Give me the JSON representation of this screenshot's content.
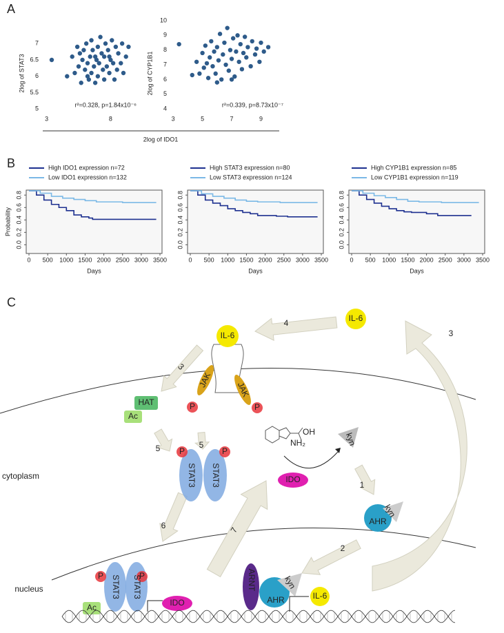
{
  "panel_labels": [
    "A",
    "B",
    "C"
  ],
  "panel_a_x_label": "2log of IDO1",
  "chart_data": [
    {
      "type": "scatter",
      "y_label": "2log of STAT3",
      "annotation": "r²=0.328, p=1.84x10⁻⁶",
      "color": "#2e5b8a",
      "xlim": [
        2.7,
        9.7
      ],
      "xticks": [
        3,
        8
      ],
      "ylim": [
        4.9,
        7.7
      ],
      "yticks": [
        5,
        5.5,
        6,
        6.5,
        7
      ],
      "x": [
        3.4,
        4.6,
        5.0,
        5.2,
        5.4,
        5.5,
        5.7,
        5.8,
        5.9,
        6.0,
        6.1,
        6.2,
        6.3,
        6.4,
        6.5,
        6.5,
        6.6,
        6.7,
        6.8,
        6.9,
        7.0,
        7.0,
        7.1,
        7.2,
        7.3,
        7.4,
        7.5,
        7.5,
        7.6,
        7.7,
        7.8,
        7.9,
        8.0,
        8.1,
        8.2,
        8.3,
        8.4,
        8.5,
        8.6,
        8.8,
        8.9,
        9.0,
        9.2,
        9.4,
        5.6,
        6.2,
        7.9,
        6.8
      ],
      "values": [
        6.5,
        6.0,
        6.6,
        6.1,
        6.9,
        6.3,
        5.8,
        6.5,
        6.8,
        6.2,
        7.0,
        6.4,
        5.9,
        6.6,
        6.1,
        7.1,
        6.8,
        6.3,
        5.8,
        6.5,
        6.0,
        6.9,
        6.4,
        7.2,
        6.7,
        6.2,
        5.9,
        6.6,
        7.0,
        6.3,
        6.8,
        6.1,
        6.5,
        7.1,
        6.4,
        5.9,
        6.9,
        6.2,
        6.7,
        6.4,
        7.0,
        6.1,
        6.6,
        6.9,
        6.7,
        6.0,
        6.6,
        6.6
      ]
    },
    {
      "type": "scatter",
      "y_label": "2log of CYP1B1",
      "annotation": "r²=0.339, p=8.73x10⁻⁷",
      "color": "#2e5b8a",
      "xlim": [
        2.85,
        10.25
      ],
      "xticks": [
        3,
        5,
        7,
        9
      ],
      "ylim": [
        3.77,
        10
      ],
      "yticks": [
        4,
        5,
        6,
        7,
        8,
        9,
        10
      ],
      "x": [
        3.4,
        4.3,
        4.6,
        4.8,
        5.0,
        5.1,
        5.2,
        5.3,
        5.4,
        5.5,
        5.6,
        5.7,
        5.8,
        5.9,
        6.0,
        6.1,
        6.2,
        6.3,
        6.4,
        6.5,
        6.6,
        6.7,
        6.8,
        6.9,
        7.0,
        7.1,
        7.2,
        7.3,
        7.4,
        7.5,
        7.6,
        7.7,
        7.8,
        7.9,
        8.0,
        8.1,
        8.3,
        8.4,
        8.6,
        8.7,
        8.9,
        9.0,
        9.2,
        9.5,
        6.0,
        7.0
      ],
      "values": [
        8.4,
        6.3,
        7.2,
        6.4,
        7.8,
        6.8,
        8.3,
        7.1,
        6.1,
        7.5,
        8.6,
        6.9,
        7.9,
        6.4,
        8.2,
        7.3,
        9.1,
        6.0,
        7.7,
        8.5,
        7.0,
        9.5,
        6.6,
        8.0,
        7.4,
        8.8,
        6.2,
        7.9,
        9.0,
        7.2,
        8.4,
        6.7,
        7.8,
        8.9,
        7.5,
        8.2,
        6.9,
        8.6,
        7.7,
        8.1,
        7.2,
        8.5,
        7.9,
        8.2,
        5.8,
        6.0
      ]
    },
    {
      "type": "line",
      "step": true,
      "x_label": "Days",
      "y_label": "Probability",
      "xlim": [
        -74,
        3555
      ],
      "xticks": [
        0,
        500,
        1000,
        1500,
        2000,
        2500,
        3000,
        3500
      ],
      "ylim": [
        -0.14,
        0.88
      ],
      "yticks": [
        {
          "value": 0,
          "label": "0.0"
        },
        0.2,
        0.4,
        0.6,
        0.8
      ],
      "series": [
        {
          "name": "High IDO1 expression n=72",
          "color": "#1c2f8f",
          "x": [
            0,
            200,
            400,
            600,
            800,
            1000,
            1200,
            1400,
            1600,
            1700,
            2300,
            3400
          ],
          "values": [
            0.87,
            0.8,
            0.72,
            0.65,
            0.6,
            0.55,
            0.48,
            0.45,
            0.43,
            0.41,
            0.41,
            0.41
          ]
        },
        {
          "name": "Low IDO1 expression n=132",
          "color": "#7ab8e6",
          "x": [
            0,
            300,
            600,
            900,
            1200,
            1500,
            1800,
            2500,
            3400
          ],
          "values": [
            0.87,
            0.83,
            0.78,
            0.75,
            0.73,
            0.71,
            0.69,
            0.68,
            0.68
          ]
        }
      ]
    },
    {
      "type": "line",
      "step": true,
      "x_label": "Days",
      "xlim": [
        -74,
        3555
      ],
      "xticks": [
        0,
        500,
        1000,
        1500,
        2000,
        2500,
        3000,
        3500
      ],
      "ylim": [
        -0.14,
        0.88
      ],
      "yticks": [
        {
          "value": 0,
          "label": "0.0"
        },
        0.2,
        0.4,
        0.6,
        0.8
      ],
      "series": [
        {
          "name": "High STAT3 expression n=80",
          "color": "#1c2f8f",
          "x": [
            0,
            200,
            400,
            600,
            800,
            1000,
            1200,
            1400,
            1600,
            1800,
            2300,
            2600,
            3400
          ],
          "values": [
            0.87,
            0.8,
            0.72,
            0.67,
            0.63,
            0.58,
            0.55,
            0.52,
            0.5,
            0.47,
            0.46,
            0.45,
            0.45
          ]
        },
        {
          "name": "Low STAT3 expression n=124",
          "color": "#7ab8e6",
          "x": [
            0,
            300,
            600,
            900,
            1200,
            1500,
            1800,
            2400,
            3400
          ],
          "values": [
            0.87,
            0.82,
            0.78,
            0.75,
            0.72,
            0.7,
            0.69,
            0.68,
            0.68
          ]
        }
      ]
    },
    {
      "type": "line",
      "step": true,
      "x_label": "Days",
      "xlim": [
        -74,
        3555
      ],
      "xticks": [
        0,
        500,
        1000,
        1500,
        2000,
        2500,
        3000,
        3500
      ],
      "ylim": [
        -0.14,
        0.88
      ],
      "yticks": [
        {
          "value": 0,
          "label": "0.0"
        },
        0.2,
        0.4,
        0.6,
        0.8
      ],
      "series": [
        {
          "name": "High CYP1B1 expression n=85",
          "color": "#1c2f8f",
          "x": [
            0,
            200,
            400,
            600,
            800,
            1000,
            1200,
            1400,
            1600,
            2000,
            2300,
            3200
          ],
          "values": [
            0.87,
            0.8,
            0.73,
            0.67,
            0.62,
            0.58,
            0.55,
            0.53,
            0.52,
            0.5,
            0.47,
            0.47
          ]
        },
        {
          "name": "Low CYP1B1 expression n=119",
          "color": "#7ab8e6",
          "x": [
            0,
            300,
            600,
            900,
            1200,
            1500,
            1800,
            2400,
            3400
          ],
          "values": [
            0.87,
            0.83,
            0.79,
            0.76,
            0.73,
            0.7,
            0.69,
            0.68,
            0.68
          ]
        }
      ]
    }
  ],
  "diagram": {
    "labels": [
      "IL-6",
      "4",
      "3",
      "IL-6",
      "3",
      "JAK",
      "JAK",
      "P",
      "P",
      "HAT",
      "Ac",
      "5",
      "5",
      "P",
      "P",
      "STAT3",
      "STAT3",
      "kyn",
      "IDO",
      "1",
      "kyn",
      "AHR",
      "cytoplasm",
      "6",
      "7",
      "2",
      "nucleus",
      "P",
      "P",
      "STAT3",
      "STAT3",
      "Ac",
      "IDO",
      "ARNT",
      "kyn",
      "AHR",
      "IL-6",
      "OH",
      "NH₂"
    ]
  }
}
